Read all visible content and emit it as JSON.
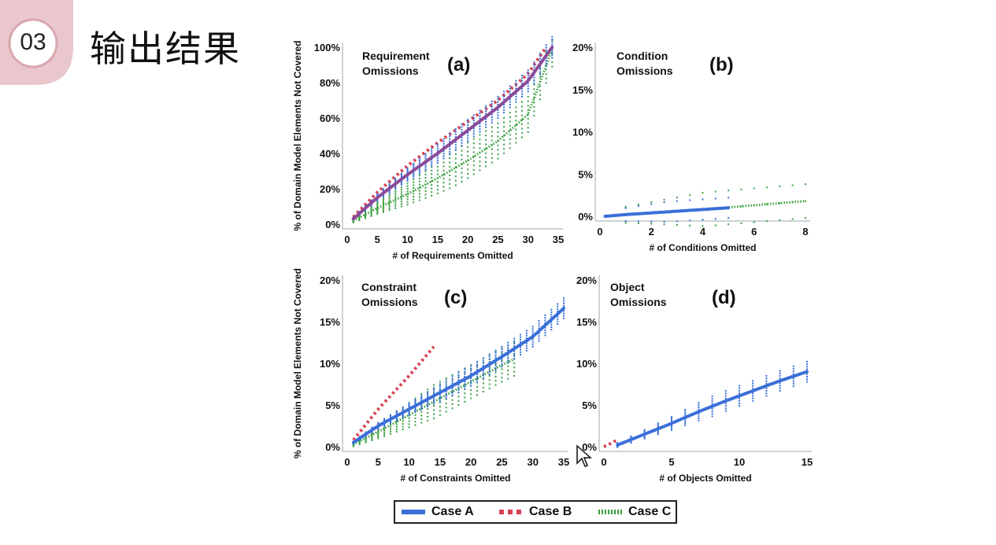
{
  "slide": {
    "number": "03",
    "title": "输出结果"
  },
  "legend": [
    {
      "label": "Case A",
      "color": "#3a6fd8",
      "style": "solid"
    },
    {
      "label": "Case B",
      "color": "#d84050",
      "style": "dotted"
    },
    {
      "label": "Case C",
      "color": "#3aa040",
      "style": "dotted"
    }
  ],
  "colors": {
    "caseA": "#3a6fd8",
    "caseB": "#d84050",
    "caseC": "#3aa040",
    "caseA_purple": "#8a4a9a"
  },
  "chart_data": [
    {
      "type": "scatter",
      "panel": "a",
      "letter": "(a)",
      "title": [
        "Requirement",
        "Omissions"
      ],
      "xlabel": "# of Requirements Omitted",
      "ylabel": "% of Domain Model Elements Not Covered",
      "xlim": [
        0,
        35
      ],
      "ylim": [
        0,
        100
      ],
      "xticks": [
        0,
        5,
        10,
        15,
        20,
        25,
        30,
        35
      ],
      "yticks": [
        0,
        20,
        40,
        60,
        80,
        100
      ],
      "yticklabels": [
        "0%",
        "20%",
        "40%",
        "60%",
        "80%",
        "100%"
      ],
      "series": [
        {
          "name": "Case A",
          "x": [
            1,
            5,
            10,
            15,
            20,
            25,
            30,
            34
          ],
          "y": [
            3,
            15,
            28,
            40,
            53,
            66,
            81,
            100
          ]
        },
        {
          "name": "Case B",
          "x": [
            1,
            5,
            10,
            15,
            20,
            25,
            30,
            33
          ],
          "y": [
            4,
            18,
            33,
            46,
            58,
            70,
            85,
            100
          ]
        },
        {
          "name": "Case C",
          "x": [
            1,
            5,
            10,
            15,
            20,
            25,
            30,
            34
          ],
          "y": [
            2,
            9,
            17,
            26,
            36,
            47,
            62,
            99
          ]
        }
      ]
    },
    {
      "type": "scatter",
      "panel": "b",
      "letter": "(b)",
      "title": [
        "Condition",
        "Omissions"
      ],
      "xlabel": "# of Conditions Omitted",
      "ylabel": "",
      "xlim": [
        0,
        8
      ],
      "ylim": [
        0,
        20
      ],
      "xticks": [
        0,
        2,
        4,
        6,
        8
      ],
      "yticks": [
        0,
        5,
        10,
        15,
        20
      ],
      "yticklabels": [
        "0%",
        "5%",
        "10%",
        "15%",
        "20%"
      ],
      "series": [
        {
          "name": "Case A",
          "x": [
            0.2,
            1,
            2,
            3,
            4,
            5
          ],
          "y": [
            0.0,
            0.2,
            0.4,
            0.6,
            0.8,
            1.0
          ]
        },
        {
          "name": "Case C",
          "x": [
            0.2,
            2,
            4,
            6,
            8
          ],
          "y": [
            0.0,
            0.4,
            0.8,
            1.3,
            1.8
          ]
        }
      ]
    },
    {
      "type": "scatter",
      "panel": "c",
      "letter": "(c)",
      "title": [
        "Constraint",
        "Omissions"
      ],
      "xlabel": "# of Constraints Omitted",
      "ylabel": "% of Domain Model Elements Not Covered",
      "xlim": [
        0,
        35
      ],
      "ylim": [
        0,
        20
      ],
      "xticks": [
        0,
        5,
        10,
        15,
        20,
        25,
        30,
        35
      ],
      "yticks": [
        0,
        5,
        10,
        15,
        20
      ],
      "yticklabels": [
        "0%",
        "5%",
        "10%",
        "15%",
        "20%"
      ],
      "series": [
        {
          "name": "Case A",
          "x": [
            1,
            5,
            10,
            15,
            20,
            25,
            30,
            35
          ],
          "y": [
            0.5,
            2.5,
            4.5,
            6.5,
            8.5,
            10.8,
            13.2,
            16.6
          ]
        },
        {
          "name": "Case B",
          "x": [
            1,
            5,
            10,
            14
          ],
          "y": [
            0.8,
            4.5,
            8.5,
            12
          ]
        },
        {
          "name": "Case C",
          "x": [
            1,
            5,
            10,
            15,
            20,
            25,
            27
          ],
          "y": [
            0.3,
            1.8,
            3.8,
            5.8,
            7.8,
            9.8,
            10.5
          ]
        }
      ]
    },
    {
      "type": "scatter",
      "panel": "d",
      "letter": "(d)",
      "title": [
        "Object",
        "Omissions"
      ],
      "xlabel": "# of Objects Omitted",
      "ylabel": "",
      "xlim": [
        0,
        15
      ],
      "ylim": [
        0,
        20
      ],
      "xticks": [
        0,
        5,
        10,
        15
      ],
      "yticks": [
        0,
        5,
        10,
        15,
        20
      ],
      "yticklabels": [
        "0%",
        "5%",
        "10%",
        "15%",
        "20%"
      ],
      "series": [
        {
          "name": "Case A",
          "x": [
            1,
            3,
            5,
            7,
            9,
            11,
            13,
            15
          ],
          "y": [
            0.2,
            1.5,
            2.8,
            4.2,
            5.5,
            6.7,
            7.9,
            9.0
          ]
        },
        {
          "name": "Case B",
          "x": [
            0,
            0.5,
            1
          ],
          "y": [
            0.0,
            0.4,
            0.8
          ]
        }
      ]
    }
  ]
}
